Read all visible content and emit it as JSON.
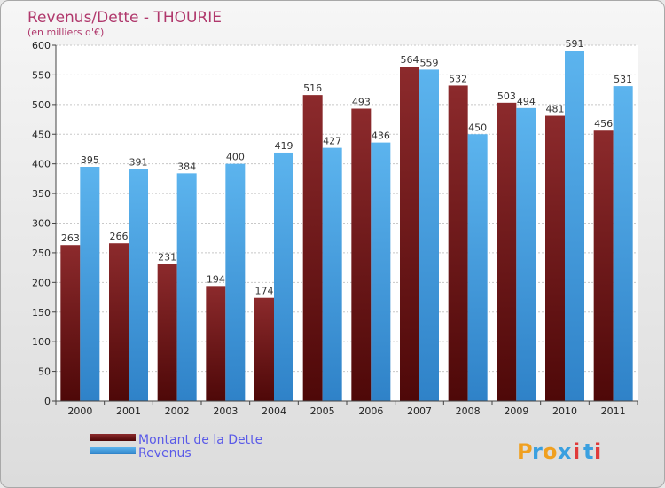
{
  "chart_data": {
    "type": "bar",
    "title": "Revenus/Dette - THOURIE",
    "subtitle": "(en milliers d'€)",
    "categories": [
      "2000",
      "2001",
      "2002",
      "2003",
      "2004",
      "2005",
      "2006",
      "2007",
      "2008",
      "2009",
      "2010",
      "2011"
    ],
    "series": [
      {
        "name": "Montant de la Dette",
        "values": [
          263,
          266,
          231,
          194,
          174,
          516,
          493,
          564,
          532,
          503,
          481,
          456
        ],
        "color": "#7a1a1c"
      },
      {
        "name": "Revenus",
        "values": [
          395,
          391,
          384,
          400,
          419,
          427,
          436,
          559,
          450,
          494,
          591,
          531
        ],
        "color": "#4fa7e6"
      }
    ],
    "ylim": [
      0,
      600
    ],
    "yticks": [
      0,
      50,
      100,
      150,
      200,
      250,
      300,
      350,
      400,
      450,
      500,
      550,
      600
    ],
    "grid": true,
    "legend_position": "bottom-left"
  },
  "logo": {
    "text": "Proxiti",
    "letters": [
      "P",
      "r",
      "o",
      "x",
      "i",
      "t",
      "i"
    ],
    "colors": [
      "#f0a020",
      "#3aa0e0",
      "#f0a020",
      "#3aa0e0",
      "#e03a3a",
      "#3aa0e0",
      "#e03a3a"
    ]
  }
}
